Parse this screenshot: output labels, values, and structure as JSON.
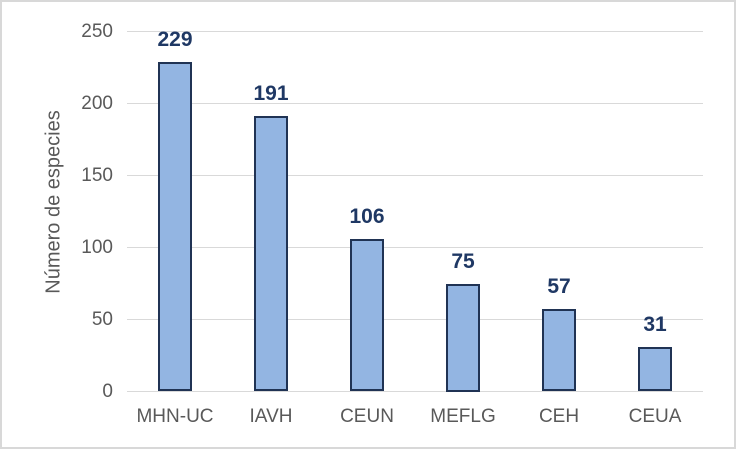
{
  "chart_data": {
    "type": "bar",
    "categories": [
      "MHN-UC",
      "IAVH",
      "CEUN",
      "MEFLG",
      "CEH",
      "CEUA"
    ],
    "values": [
      229,
      191,
      106,
      75,
      57,
      31
    ],
    "title": "",
    "xlabel": "",
    "ylabel": "Número de especies",
    "ylim": [
      0,
      250
    ],
    "yticks": [
      0,
      50,
      100,
      150,
      200,
      250
    ],
    "grid": true,
    "legend": false,
    "data_labels_shown": true
  },
  "colors": {
    "bar_fill": "#93b5e2",
    "bar_border": "#203354",
    "data_label": "#1f3864",
    "axis_text": "#595959",
    "gridline": "#d9d9d9",
    "figure_border": "#d8d8d8",
    "background": "#ffffff"
  }
}
